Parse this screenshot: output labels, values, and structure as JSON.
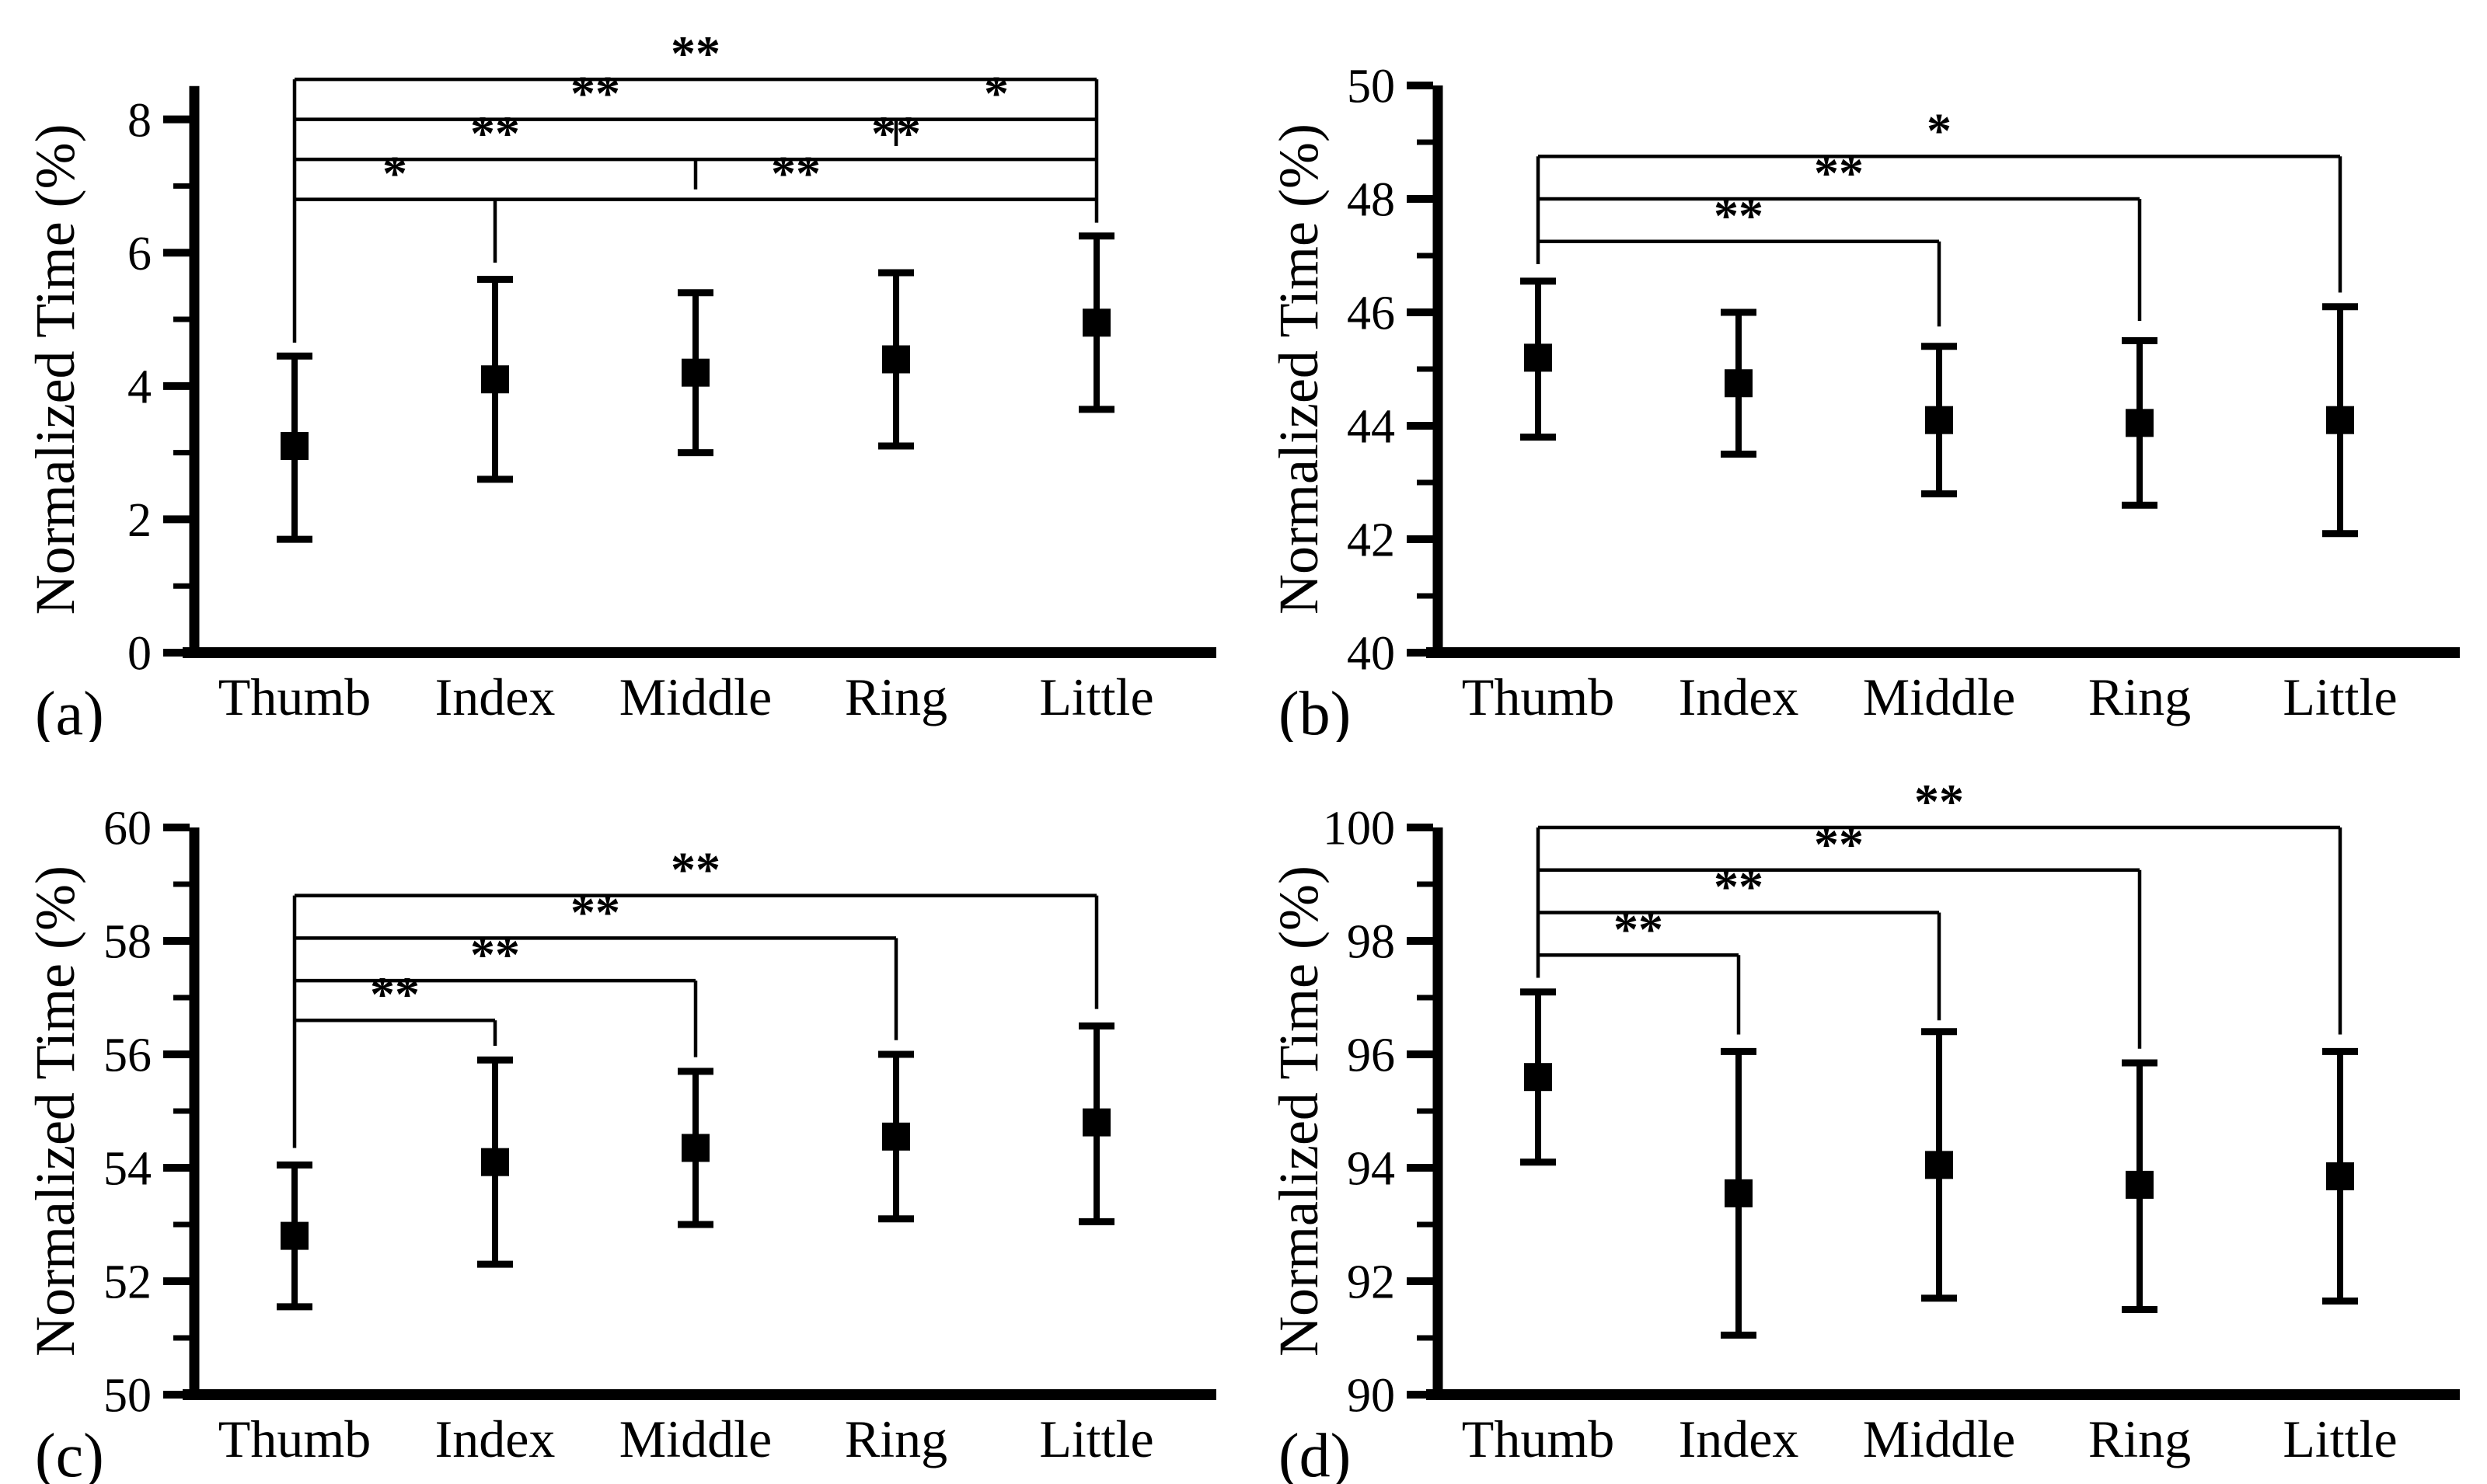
{
  "figure": {
    "background": "#ffffff",
    "foreground": "#000000",
    "marker": "filled-square",
    "panel_letters": [
      "(a)",
      "(b)",
      "(c)",
      "(d)"
    ]
  },
  "chart_data": [
    {
      "id": "a",
      "type": "scatter",
      "panel_label": "(a)",
      "ylabel": "Normalized Time (%)",
      "categories": [
        "Thumb",
        "Index",
        "Middle",
        "Ring",
        "Little"
      ],
      "ylim": [
        0,
        8.8
      ],
      "axis_top": 8.5,
      "yticks": [
        0,
        2,
        4,
        6,
        8
      ],
      "yticks_minor": [
        1,
        3,
        5,
        7
      ],
      "grid": false,
      "series": [
        {
          "name": "mean with error bars",
          "means": [
            3.1,
            4.1,
            4.2,
            4.4,
            4.95
          ],
          "err_low": [
            1.7,
            2.6,
            3.0,
            3.1,
            3.65
          ],
          "err_high": [
            4.45,
            5.6,
            5.4,
            5.7,
            6.25
          ]
        }
      ],
      "significance": {
        "comparisons": [
          {
            "pair": [
              "Thumb",
              "Index"
            ],
            "label": "*"
          },
          {
            "pair": [
              "Index",
              "Little"
            ],
            "label": "**"
          },
          {
            "pair": [
              "Thumb",
              "Middle"
            ],
            "label": "**"
          },
          {
            "pair": [
              "Middle",
              "Little"
            ],
            "label": "**"
          },
          {
            "pair": [
              "Thumb",
              "Ring"
            ],
            "label": "**"
          },
          {
            "pair": [
              "Ring",
              "Little"
            ],
            "label": "*"
          },
          {
            "pair": [
              "Thumb",
              "Little"
            ],
            "label": "**"
          }
        ],
        "horizontals": [
          {
            "y": 8.6,
            "from": 0,
            "to": 4,
            "labels": [
              {
                "text": "**",
                "between": [
                  0,
                  4
                ]
              }
            ]
          },
          {
            "y": 8.0,
            "from": 0,
            "to": 4,
            "labels": [
              {
                "text": "**",
                "between": [
                  0,
                  3
                ]
              },
              {
                "text": "*",
                "between": [
                  3,
                  4
                ]
              }
            ]
          },
          {
            "y": 7.4,
            "from": 0,
            "to": 4,
            "labels": [
              {
                "text": "**",
                "between": [
                  0,
                  2
                ]
              },
              {
                "text": "**",
                "between": [
                  2,
                  4
                ]
              }
            ]
          },
          {
            "y": 6.8,
            "from": 0,
            "to": 4,
            "labels": [
              {
                "text": "*",
                "between": [
                  0,
                  1
                ]
              },
              {
                "text": "**",
                "between": [
                  1,
                  4
                ]
              }
            ]
          }
        ],
        "verticals": [
          {
            "cat": 0,
            "from": 8.6,
            "to": 4.65
          },
          {
            "cat": 4,
            "from": 8.6,
            "to": 6.45
          },
          {
            "cat": 3,
            "from": 8.0,
            "to": 7.6
          },
          {
            "cat": 2,
            "from": 7.4,
            "to": 6.95
          },
          {
            "cat": 1,
            "from": 6.8,
            "to": 5.85
          }
        ]
      }
    },
    {
      "id": "b",
      "type": "scatter",
      "panel_label": "(b)",
      "ylabel": "Normalized Time (%)",
      "categories": [
        "Thumb",
        "Index",
        "Middle",
        "Ring",
        "Little"
      ],
      "ylim": [
        40,
        50
      ],
      "axis_top": 50,
      "yticks": [
        40,
        42,
        44,
        46,
        48,
        50
      ],
      "yticks_minor": [
        41,
        43,
        45,
        47,
        49
      ],
      "grid": false,
      "series": [
        {
          "name": "mean with error bars",
          "means": [
            45.2,
            44.75,
            44.1,
            44.05,
            44.1
          ],
          "err_low": [
            43.8,
            43.5,
            42.8,
            42.6,
            42.1
          ],
          "err_high": [
            46.55,
            46.0,
            45.4,
            45.5,
            46.1
          ]
        }
      ],
      "significance": {
        "comparisons": [
          {
            "pair": [
              "Thumb",
              "Middle"
            ],
            "label": "**"
          },
          {
            "pair": [
              "Thumb",
              "Ring"
            ],
            "label": "**"
          },
          {
            "pair": [
              "Thumb",
              "Little"
            ],
            "label": "*"
          }
        ],
        "horizontals": [
          {
            "y": 47.25,
            "from": 0,
            "to": 2,
            "labels": [
              {
                "text": "**",
                "between": [
                  0,
                  2
                ]
              }
            ]
          },
          {
            "y": 48.0,
            "from": 0,
            "to": 3,
            "labels": [
              {
                "text": "**",
                "between": [
                  0,
                  3
                ]
              }
            ]
          },
          {
            "y": 48.75,
            "from": 0,
            "to": 4,
            "labels": [
              {
                "text": "*",
                "between": [
                  0,
                  4
                ]
              }
            ]
          }
        ],
        "verticals": [
          {
            "cat": 0,
            "from": 48.75,
            "to": 46.85
          },
          {
            "cat": 2,
            "from": 47.25,
            "to": 45.75
          },
          {
            "cat": 3,
            "from": 48.0,
            "to": 45.85
          },
          {
            "cat": 4,
            "from": 48.75,
            "to": 46.35
          }
        ]
      }
    },
    {
      "id": "c",
      "type": "scatter",
      "panel_label": "(c)",
      "ylabel": "Normalized Time (%)",
      "categories": [
        "Thumb",
        "Index",
        "Middle",
        "Ring",
        "Little"
      ],
      "ylim": [
        50,
        60
      ],
      "axis_top": 60,
      "yticks": [
        50,
        52,
        54,
        56,
        58,
        60
      ],
      "yticks_minor": [
        51,
        53,
        55,
        57,
        59
      ],
      "grid": false,
      "series": [
        {
          "name": "mean with error bars",
          "means": [
            52.8,
            54.1,
            54.35,
            54.55,
            54.8
          ],
          "err_low": [
            51.55,
            52.3,
            53.0,
            53.1,
            53.05
          ],
          "err_high": [
            54.05,
            55.9,
            55.7,
            56.0,
            56.5
          ]
        }
      ],
      "significance": {
        "comparisons": [
          {
            "pair": [
              "Thumb",
              "Index"
            ],
            "label": "**"
          },
          {
            "pair": [
              "Thumb",
              "Middle"
            ],
            "label": "**"
          },
          {
            "pair": [
              "Thumb",
              "Ring"
            ],
            "label": "**"
          },
          {
            "pair": [
              "Thumb",
              "Little"
            ],
            "label": "**"
          }
        ],
        "horizontals": [
          {
            "y": 56.6,
            "from": 0,
            "to": 1,
            "labels": [
              {
                "text": "**",
                "between": [
                  0,
                  1
                ]
              }
            ]
          },
          {
            "y": 57.3,
            "from": 0,
            "to": 2,
            "labels": [
              {
                "text": "**",
                "between": [
                  0,
                  2
                ]
              }
            ]
          },
          {
            "y": 58.05,
            "from": 0,
            "to": 3,
            "labels": [
              {
                "text": "**",
                "between": [
                  0,
                  3
                ]
              }
            ]
          },
          {
            "y": 58.8,
            "from": 0,
            "to": 4,
            "labels": [
              {
                "text": "**",
                "between": [
                  0,
                  4
                ]
              }
            ]
          }
        ],
        "verticals": [
          {
            "cat": 0,
            "from": 58.8,
            "to": 54.35
          },
          {
            "cat": 1,
            "from": 56.6,
            "to": 56.15
          },
          {
            "cat": 2,
            "from": 57.3,
            "to": 55.95
          },
          {
            "cat": 3,
            "from": 58.05,
            "to": 56.25
          },
          {
            "cat": 4,
            "from": 58.8,
            "to": 56.8
          }
        ]
      }
    },
    {
      "id": "d",
      "type": "scatter",
      "panel_label": "(d)",
      "ylabel": "Normalized Time (%)",
      "categories": [
        "Thumb",
        "Index",
        "Middle",
        "Ring",
        "Little"
      ],
      "ylim": [
        90,
        100
      ],
      "axis_top": 100,
      "yticks": [
        90,
        92,
        94,
        96,
        98,
        100
      ],
      "yticks_minor": [
        91,
        93,
        95,
        97,
        99
      ],
      "grid": false,
      "series": [
        {
          "name": "mean with error bars",
          "means": [
            95.6,
            93.55,
            94.05,
            93.7,
            93.85
          ],
          "err_low": [
            94.1,
            91.05,
            91.7,
            91.5,
            91.65
          ],
          "err_high": [
            97.1,
            96.05,
            96.4,
            95.85,
            96.05
          ]
        }
      ],
      "significance": {
        "comparisons": [
          {
            "pair": [
              "Thumb",
              "Index"
            ],
            "label": "**"
          },
          {
            "pair": [
              "Thumb",
              "Middle"
            ],
            "label": "**"
          },
          {
            "pair": [
              "Thumb",
              "Ring"
            ],
            "label": "**"
          },
          {
            "pair": [
              "Thumb",
              "Little"
            ],
            "label": "**"
          }
        ],
        "horizontals": [
          {
            "y": 97.75,
            "from": 0,
            "to": 1,
            "labels": [
              {
                "text": "**",
                "between": [
                  0,
                  1
                ]
              }
            ]
          },
          {
            "y": 98.5,
            "from": 0,
            "to": 2,
            "labels": [
              {
                "text": "**",
                "between": [
                  0,
                  2
                ]
              }
            ]
          },
          {
            "y": 99.25,
            "from": 0,
            "to": 3,
            "labels": [
              {
                "text": "**",
                "between": [
                  0,
                  3
                ]
              }
            ]
          },
          {
            "y": 100.0,
            "from": 0,
            "to": 4,
            "labels": [
              {
                "text": "**",
                "between": [
                  0,
                  4
                ]
              }
            ]
          }
        ],
        "verticals": [
          {
            "cat": 0,
            "from": 100.0,
            "to": 97.35
          },
          {
            "cat": 1,
            "from": 97.75,
            "to": 96.35
          },
          {
            "cat": 2,
            "from": 98.5,
            "to": 96.6
          },
          {
            "cat": 3,
            "from": 99.25,
            "to": 96.1
          },
          {
            "cat": 4,
            "from": 100.0,
            "to": 96.35
          }
        ]
      }
    }
  ]
}
